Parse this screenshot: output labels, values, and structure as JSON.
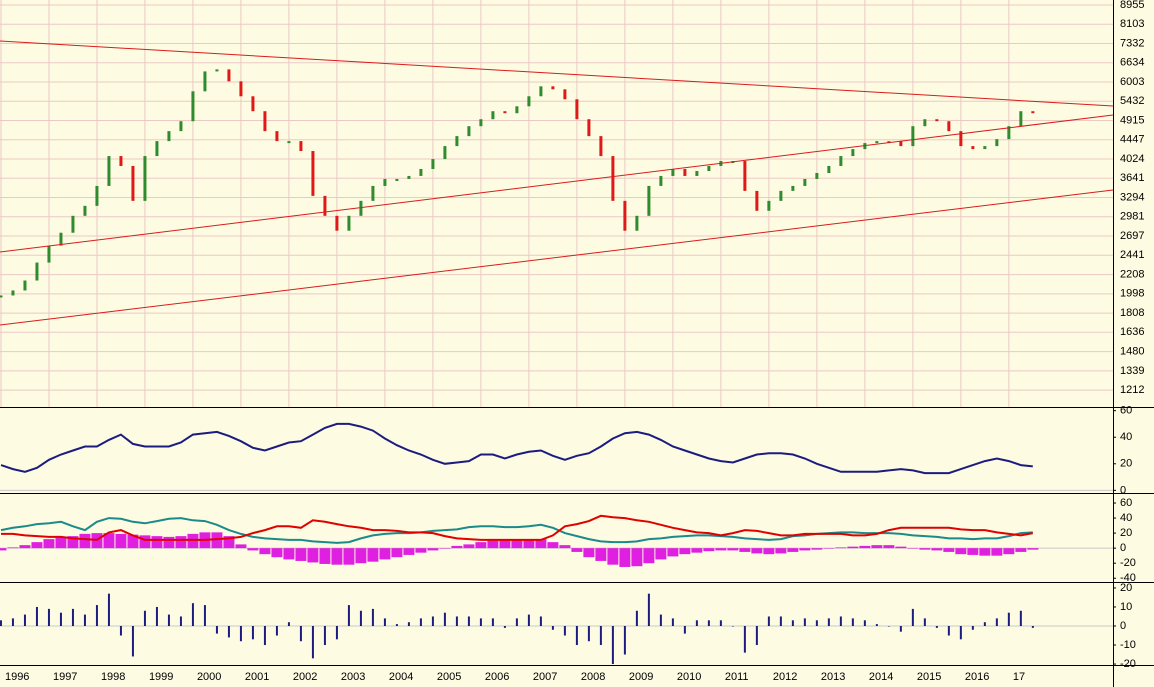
{
  "chart_data": [
    {
      "type": "bar",
      "log_scale": true,
      "grid": true,
      "color_up": "#2e8b2e",
      "color_down": "#e01818",
      "x": [
        1996,
        1996.25,
        1996.5,
        1996.75,
        1997,
        1997.25,
        1997.5,
        1997.75,
        1998,
        1998.25,
        1998.5,
        1998.75,
        1999,
        1999.25,
        1999.5,
        1999.75,
        2000,
        2000.25,
        2000.5,
        2000.75,
        2001,
        2001.25,
        2001.5,
        2001.75,
        2002,
        2002.25,
        2002.5,
        2002.75,
        2003,
        2003.25,
        2003.5,
        2003.75,
        2004,
        2004.25,
        2004.5,
        2004.75,
        2005,
        2005.25,
        2005.5,
        2005.75,
        2006,
        2006.25,
        2006.5,
        2006.75,
        2007,
        2007.25,
        2007.5,
        2007.75,
        2008,
        2008.25,
        2008.5,
        2008.75,
        2009,
        2009.25,
        2009.5,
        2009.75,
        2010,
        2010.25,
        2010.5,
        2010.75,
        2011,
        2011.25,
        2011.5,
        2011.75,
        2012,
        2012.25,
        2012.5,
        2012.75,
        2013,
        2013.25,
        2013.5,
        2013.75,
        2014,
        2014.25,
        2014.5,
        2014.75,
        2015,
        2015.25,
        2015.5,
        2015.75,
        2016,
        2016.25,
        2016.5,
        2016.75,
        2017,
        2017.25,
        2017.5
      ],
      "values": [
        1981,
        2033,
        2141,
        2350,
        2566,
        2744,
        2996,
        3155,
        3499,
        4086,
        3881,
        3238,
        4086,
        4416,
        4651,
        4897,
        5719,
        6342,
        6409,
        6024,
        5574,
        5158,
        4651,
        4416,
        4416,
        4194,
        3323,
        2996,
        2773,
        2996,
        3238,
        3499,
        3628,
        3628,
        3685,
        3821,
        4023,
        4303,
        4532,
        4772,
        4948,
        5158,
        5105,
        5292,
        5574,
        5870,
        5779,
        5488,
        4948,
        4532,
        4086,
        3238,
        2773,
        2996,
        3499,
        3685,
        3821,
        3685,
        3781,
        3881,
        3982,
        3982,
        3410,
        3075,
        3238,
        3410,
        3499,
        3628,
        3742,
        3881,
        4086,
        4237,
        4371,
        4416,
        4416,
        4303,
        4772,
        4948,
        4897,
        4651,
        4303,
        4237,
        4303,
        4462,
        4772,
        5158,
        5105
      ],
      "ylim": [
        1110,
        9190
      ],
      "yticks": [
        1212,
        1339,
        1480,
        1636,
        1808,
        1998,
        2208,
        2441,
        2697,
        2981,
        3294,
        3641,
        4024,
        4447,
        4915,
        5432,
        6003,
        6634,
        7332,
        8103,
        8955
      ]
    },
    {
      "type": "line",
      "ylim": [
        -2,
        62
      ],
      "yticks": [
        0,
        20,
        40,
        60
      ],
      "series": [
        {
          "color": "#1c1c80",
          "values": [
            19,
            16,
            14,
            17,
            23,
            27,
            30,
            33,
            33,
            38,
            42,
            35,
            33,
            33,
            33,
            36,
            42,
            43,
            44,
            41,
            37,
            32,
            30,
            33,
            36,
            37,
            42,
            47,
            50,
            50,
            48,
            45,
            39,
            34,
            30,
            27,
            23,
            20,
            21,
            22,
            27,
            27,
            24,
            27,
            29,
            30,
            26,
            23,
            26,
            28,
            33,
            39,
            43,
            44,
            42,
            38,
            33,
            30,
            27,
            24,
            22,
            21,
            24,
            27,
            28,
            28,
            27,
            24,
            20,
            17,
            14,
            14,
            14,
            14,
            15,
            16,
            15,
            13,
            13,
            13,
            16,
            19,
            22,
            24,
            22,
            19,
            18
          ]
        }
      ]
    },
    {
      "type": "line",
      "ylim": [
        -45,
        72
      ],
      "yticks": [
        -40,
        -20,
        0,
        20,
        40,
        60
      ],
      "series": [
        {
          "type": "bar",
          "color": "#e020e0",
          "values": [
            -3,
            1,
            4,
            8,
            12,
            14,
            16,
            19,
            20,
            20,
            19,
            18,
            17,
            16,
            15,
            16,
            19,
            21,
            21,
            16,
            5,
            -3,
            -8,
            -12,
            -15,
            -17,
            -19,
            -21,
            -22,
            -22,
            -20,
            -18,
            -15,
            -12,
            -9,
            -6,
            -3,
            0,
            3,
            5,
            8,
            10,
            11,
            12,
            12,
            12,
            8,
            4,
            -5,
            -12,
            -17,
            -22,
            -25,
            -24,
            -20,
            -15,
            -11,
            -8,
            -6,
            -4,
            -3,
            -3,
            -5,
            -7,
            -8,
            -7,
            -5,
            -3,
            -2,
            0,
            1,
            2,
            3,
            4,
            4,
            2,
            0,
            -2,
            -3,
            -5,
            -8,
            -9,
            -10,
            -10,
            -8,
            -5,
            -2
          ]
        },
        {
          "color": "#1a8a8a",
          "values": [
            24,
            27,
            29,
            32,
            33,
            35,
            29,
            24,
            35,
            40,
            39,
            35,
            33,
            36,
            39,
            40,
            37,
            36,
            31,
            24,
            19,
            15,
            13,
            12,
            11,
            11,
            9,
            8,
            7,
            8,
            13,
            17,
            19,
            20,
            20,
            21,
            23,
            24,
            25,
            28,
            29,
            29,
            28,
            28,
            29,
            31,
            27,
            20,
            16,
            12,
            9,
            8,
            8,
            9,
            12,
            13,
            15,
            16,
            17,
            17,
            16,
            15,
            13,
            12,
            11,
            12,
            16,
            17,
            19,
            20,
            21,
            21,
            20,
            20,
            20,
            19,
            17,
            16,
            15,
            13,
            13,
            12,
            13,
            13,
            16,
            20,
            21
          ]
        },
        {
          "color": "#e00000",
          "values": [
            19,
            19,
            17,
            16,
            15,
            15,
            13,
            12,
            11,
            21,
            24,
            17,
            11,
            11,
            11,
            11,
            11,
            11,
            12,
            13,
            15,
            20,
            24,
            29,
            29,
            27,
            37,
            35,
            32,
            29,
            27,
            24,
            24,
            23,
            21,
            21,
            20,
            16,
            13,
            12,
            11,
            11,
            11,
            11,
            11,
            11,
            17,
            29,
            32,
            36,
            43,
            41,
            40,
            37,
            35,
            31,
            27,
            24,
            21,
            20,
            17,
            20,
            24,
            23,
            20,
            17,
            17,
            19,
            19,
            19,
            19,
            17,
            17,
            19,
            24,
            27,
            27,
            27,
            27,
            27,
            25,
            24,
            24,
            21,
            19,
            17,
            20
          ]
        }
      ]
    },
    {
      "type": "bar",
      "color": "#1c1c80",
      "ylim": [
        -20.5,
        22.6
      ],
      "yticks": [
        -20,
        -10,
        0,
        10,
        20
      ],
      "values": [
        3,
        4,
        6,
        10,
        9,
        7,
        9,
        6,
        11,
        17,
        -5,
        -16,
        8,
        10,
        6,
        5,
        12,
        11,
        -4,
        -6,
        -8,
        -7,
        -10,
        -5,
        2,
        -8,
        -17,
        -10,
        -7,
        11,
        8,
        9,
        4,
        1,
        2,
        4,
        5,
        7,
        5,
        5,
        4,
        4,
        -1,
        4,
        6,
        5,
        -2,
        -5,
        -10,
        -8,
        -10,
        -20,
        -15,
        8,
        17,
        6,
        4,
        -4,
        3,
        3,
        3,
        0,
        -14,
        -10,
        5,
        5,
        3,
        4,
        3,
        4,
        5,
        4,
        3,
        1,
        0,
        -3,
        9,
        4,
        -1,
        -5,
        -7,
        -2,
        2,
        4,
        7,
        8,
        -1
      ],
      "xlim": [
        1995.98,
        2019.17
      ],
      "xticks": [
        1996,
        1997,
        1998,
        1999,
        2000,
        2001,
        2002,
        2003,
        2004,
        2005,
        2006,
        2007,
        2008,
        2009,
        2010,
        2011,
        2012,
        2013,
        2014,
        2015,
        2016,
        {
          "value": 2017,
          "label": "17"
        }
      ]
    }
  ]
}
